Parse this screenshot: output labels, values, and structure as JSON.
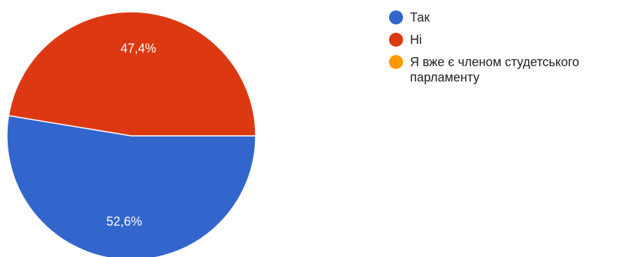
{
  "chart_data": {
    "type": "pie",
    "categories": [
      "Так",
      "Ні",
      "Я вже є членом студетського парламенту"
    ],
    "values": [
      52.6,
      47.4,
      0
    ],
    "data_labels": [
      "52,6%",
      "47,4%",
      ""
    ],
    "colors": [
      "#3366cc",
      "#dc3912",
      "#ff9900"
    ],
    "legend": "right",
    "start": "3 o'clock, counterclockwise"
  }
}
